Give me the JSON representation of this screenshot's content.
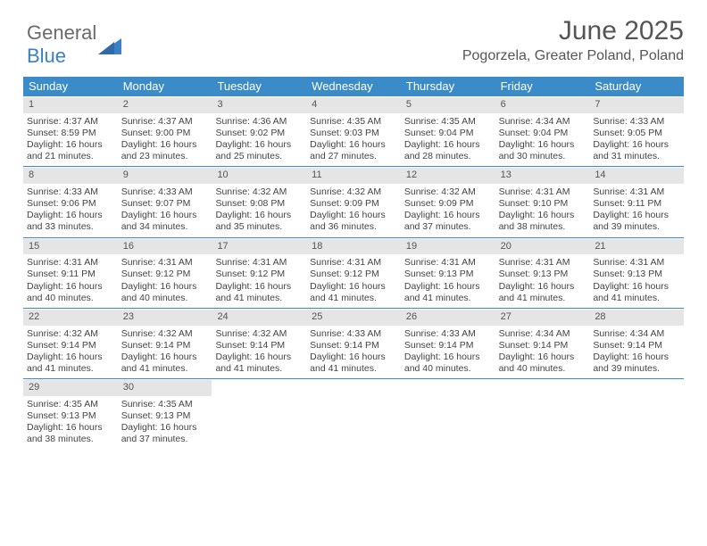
{
  "logo": {
    "text1": "General",
    "text2": "Blue"
  },
  "title": "June 2025",
  "location": "Pogorzela, Greater Poland, Poland",
  "colors": {
    "header_bg": "#3b8bc9",
    "header_text": "#ffffff",
    "daynum_bg": "#e5e5e5",
    "rule": "#3b8bc9",
    "body_text": "#444444",
    "title_text": "#555555"
  },
  "dayNames": [
    "Sunday",
    "Monday",
    "Tuesday",
    "Wednesday",
    "Thursday",
    "Friday",
    "Saturday"
  ],
  "weeks": [
    [
      {
        "n": "1",
        "sr": "4:37 AM",
        "ss": "8:59 PM",
        "dl": "16 hours and 21 minutes."
      },
      {
        "n": "2",
        "sr": "4:37 AM",
        "ss": "9:00 PM",
        "dl": "16 hours and 23 minutes."
      },
      {
        "n": "3",
        "sr": "4:36 AM",
        "ss": "9:02 PM",
        "dl": "16 hours and 25 minutes."
      },
      {
        "n": "4",
        "sr": "4:35 AM",
        "ss": "9:03 PM",
        "dl": "16 hours and 27 minutes."
      },
      {
        "n": "5",
        "sr": "4:35 AM",
        "ss": "9:04 PM",
        "dl": "16 hours and 28 minutes."
      },
      {
        "n": "6",
        "sr": "4:34 AM",
        "ss": "9:04 PM",
        "dl": "16 hours and 30 minutes."
      },
      {
        "n": "7",
        "sr": "4:33 AM",
        "ss": "9:05 PM",
        "dl": "16 hours and 31 minutes."
      }
    ],
    [
      {
        "n": "8",
        "sr": "4:33 AM",
        "ss": "9:06 PM",
        "dl": "16 hours and 33 minutes."
      },
      {
        "n": "9",
        "sr": "4:33 AM",
        "ss": "9:07 PM",
        "dl": "16 hours and 34 minutes."
      },
      {
        "n": "10",
        "sr": "4:32 AM",
        "ss": "9:08 PM",
        "dl": "16 hours and 35 minutes."
      },
      {
        "n": "11",
        "sr": "4:32 AM",
        "ss": "9:09 PM",
        "dl": "16 hours and 36 minutes."
      },
      {
        "n": "12",
        "sr": "4:32 AM",
        "ss": "9:09 PM",
        "dl": "16 hours and 37 minutes."
      },
      {
        "n": "13",
        "sr": "4:31 AM",
        "ss": "9:10 PM",
        "dl": "16 hours and 38 minutes."
      },
      {
        "n": "14",
        "sr": "4:31 AM",
        "ss": "9:11 PM",
        "dl": "16 hours and 39 minutes."
      }
    ],
    [
      {
        "n": "15",
        "sr": "4:31 AM",
        "ss": "9:11 PM",
        "dl": "16 hours and 40 minutes."
      },
      {
        "n": "16",
        "sr": "4:31 AM",
        "ss": "9:12 PM",
        "dl": "16 hours and 40 minutes."
      },
      {
        "n": "17",
        "sr": "4:31 AM",
        "ss": "9:12 PM",
        "dl": "16 hours and 41 minutes."
      },
      {
        "n": "18",
        "sr": "4:31 AM",
        "ss": "9:12 PM",
        "dl": "16 hours and 41 minutes."
      },
      {
        "n": "19",
        "sr": "4:31 AM",
        "ss": "9:13 PM",
        "dl": "16 hours and 41 minutes."
      },
      {
        "n": "20",
        "sr": "4:31 AM",
        "ss": "9:13 PM",
        "dl": "16 hours and 41 minutes."
      },
      {
        "n": "21",
        "sr": "4:31 AM",
        "ss": "9:13 PM",
        "dl": "16 hours and 41 minutes."
      }
    ],
    [
      {
        "n": "22",
        "sr": "4:32 AM",
        "ss": "9:14 PM",
        "dl": "16 hours and 41 minutes."
      },
      {
        "n": "23",
        "sr": "4:32 AM",
        "ss": "9:14 PM",
        "dl": "16 hours and 41 minutes."
      },
      {
        "n": "24",
        "sr": "4:32 AM",
        "ss": "9:14 PM",
        "dl": "16 hours and 41 minutes."
      },
      {
        "n": "25",
        "sr": "4:33 AM",
        "ss": "9:14 PM",
        "dl": "16 hours and 41 minutes."
      },
      {
        "n": "26",
        "sr": "4:33 AM",
        "ss": "9:14 PM",
        "dl": "16 hours and 40 minutes."
      },
      {
        "n": "27",
        "sr": "4:34 AM",
        "ss": "9:14 PM",
        "dl": "16 hours and 40 minutes."
      },
      {
        "n": "28",
        "sr": "4:34 AM",
        "ss": "9:14 PM",
        "dl": "16 hours and 39 minutes."
      }
    ],
    [
      {
        "n": "29",
        "sr": "4:35 AM",
        "ss": "9:13 PM",
        "dl": "16 hours and 38 minutes."
      },
      {
        "n": "30",
        "sr": "4:35 AM",
        "ss": "9:13 PM",
        "dl": "16 hours and 37 minutes."
      },
      null,
      null,
      null,
      null,
      null
    ]
  ],
  "labels": {
    "sunrise": "Sunrise: ",
    "sunset": "Sunset: ",
    "daylight": "Daylight: "
  }
}
